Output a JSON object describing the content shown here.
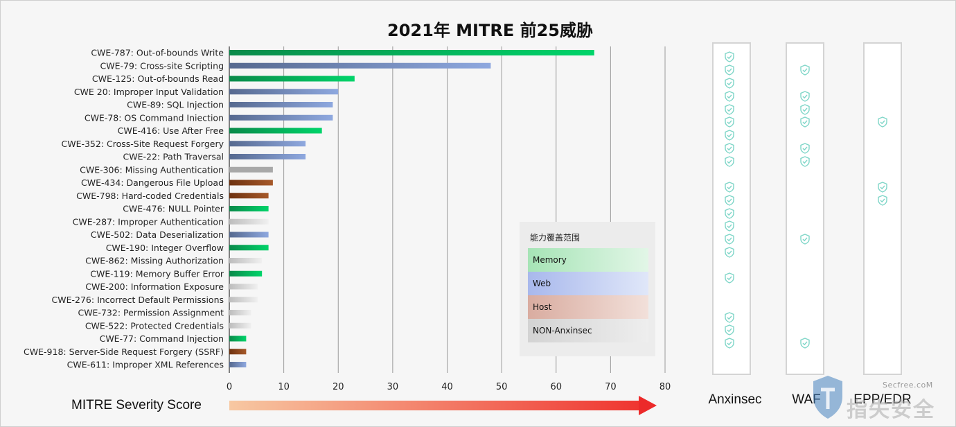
{
  "title": "2021年 MITRE 前25威胁",
  "x_axis_caption": "MITRE Severity Score",
  "legend": {
    "title": "能力覆盖范围",
    "items": [
      {
        "label": "Memory",
        "key": "memory"
      },
      {
        "label": "Web",
        "key": "web"
      },
      {
        "label": "Host",
        "key": "host"
      },
      {
        "label": "NON-Anxinsec",
        "key": "non"
      }
    ]
  },
  "colors": {
    "memory": "#00c060",
    "web": "#7f9ad0",
    "host": "#8a4a1e",
    "non": "#dcdcdc",
    "arrow_start": "#f7c8a2",
    "arrow_end": "#ef3530",
    "shield": "#7fd6c8"
  },
  "coverage_columns": [
    {
      "label": "Anxinsec",
      "covered_rows": [
        1,
        2,
        3,
        4,
        5,
        6,
        7,
        8,
        9,
        11,
        12,
        13,
        14,
        15,
        16,
        18,
        21,
        22,
        23
      ]
    },
    {
      "label": "WAF",
      "covered_rows": [
        2,
        4,
        5,
        6,
        8,
        9,
        15,
        23
      ]
    },
    {
      "label": "EPP/EDR",
      "covered_rows": [
        6,
        11,
        12
      ]
    }
  ],
  "watermark": {
    "site": "Secfree.coM",
    "cn": "指失安全"
  },
  "chart_data": {
    "type": "bar",
    "orientation": "horizontal",
    "title": "2021年 MITRE 前25威胁",
    "xlabel": "MITRE Severity Score",
    "xlim": [
      0,
      80
    ],
    "xticks": [
      0,
      10,
      20,
      30,
      40,
      50,
      60,
      70,
      80
    ],
    "grid": true,
    "legend_position": "inside-lower-right",
    "categories": [
      "CWE-787: Out-of-bounds Write",
      "CWE-79: Cross-site Scripting",
      "CWE-125: Out-of-bounds Read",
      "CWE 20: Improper Input Validation",
      "CWE-89: SQL Injection",
      "CWE-78: OS Command Iniection",
      "CWE-416: Use After Free",
      "CWE-352: Cross-Site Request Forgery",
      "CWE-22: Path Traversal",
      "CWE-306: Missing Authentication",
      "CWE-434: Dangerous File Upload",
      "CWE-798: Hard-coded Credentials",
      "CWE-476: NULL Pointer",
      "CWE-287: Improper Authentication",
      "CWE-502: Data Deserialization",
      "CWE-190: Integer Overflow",
      "CWE-862: Missing Authorization",
      "CWE-119: Memory Buffer Error",
      "CWE-200: Information Exposure",
      "CWE-276: Incorrect Default Permissions",
      "CWE-732: Permission Assignment",
      "CWE-522: Protected Credentials",
      "CWE-77: Command Injection",
      "CWE-918: Server-Side Request Forgery (SSRF)",
      "CWE-611: Improper XML References"
    ],
    "values": [
      67,
      48,
      23,
      20,
      19,
      19,
      17,
      14,
      14,
      8,
      8,
      7.2,
      7.2,
      7.2,
      7.2,
      7.2,
      6,
      6,
      5.2,
      5.2,
      4,
      4,
      3.1,
      3.1,
      3.1
    ],
    "groups": [
      "memory",
      "web",
      "memory",
      "web",
      "web",
      "web",
      "memory",
      "web",
      "web",
      "non",
      "host",
      "host",
      "memory",
      "non",
      "web",
      "memory",
      "non",
      "memory",
      "non",
      "non",
      "non",
      "non",
      "memory",
      "host",
      "web"
    ]
  }
}
